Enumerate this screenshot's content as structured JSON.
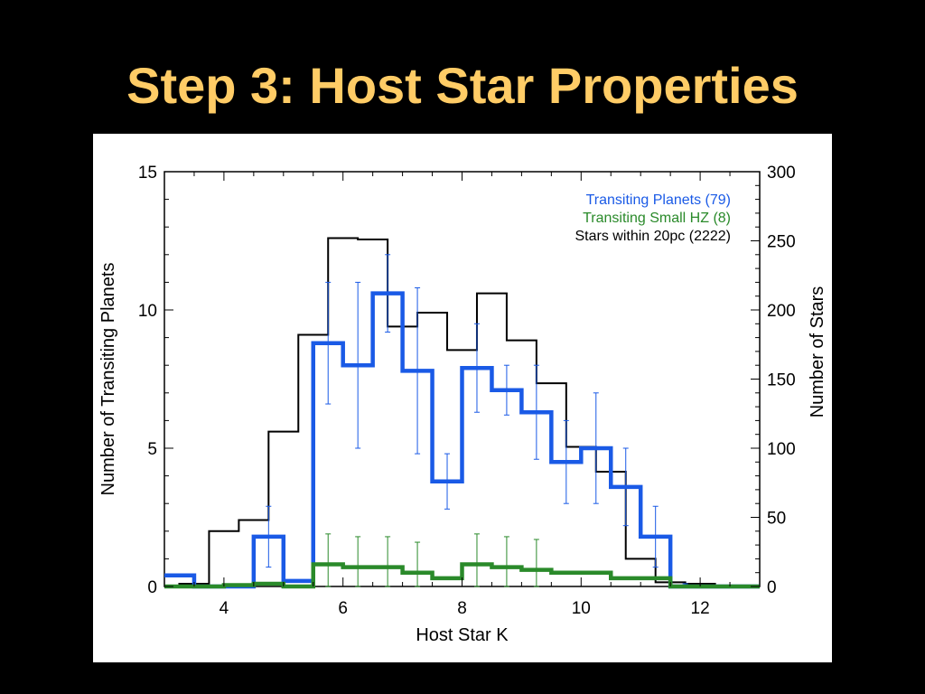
{
  "slide": {
    "title": "Step 3: Host Star Properties"
  },
  "colors": {
    "planets": "#1a5ae6",
    "small_hz": "#2a8a2a",
    "stars": "#000000",
    "title": "#ffcc66"
  },
  "chart_data": {
    "type": "histogram-step",
    "xlabel": "Host Star K",
    "ylabel_left": "Number of Transiting Planets",
    "ylabel_right": "Number of Stars",
    "xlim": [
      3,
      13
    ],
    "ylim_left": [
      0,
      15
    ],
    "ylim_right": [
      0,
      300
    ],
    "x_ticks": [
      4,
      6,
      8,
      10,
      12
    ],
    "y_ticks_left": [
      0,
      5,
      10,
      15
    ],
    "y_ticks_right": [
      0,
      50,
      100,
      150,
      200,
      250,
      300
    ],
    "bin_edges": [
      3.0,
      3.5,
      4.0,
      4.5,
      5.0,
      5.5,
      6.0,
      6.5,
      7.0,
      7.5,
      8.0,
      8.5,
      9.0,
      9.5,
      10.0,
      10.5,
      11.0,
      11.5,
      12.0,
      12.5,
      13.0
    ],
    "legend": [
      {
        "label": "Transiting Planets (79)",
        "color": "#1a5ae6"
      },
      {
        "label": "Transiting Small HZ (8)",
        "color": "#2a8a2a"
      },
      {
        "label": "Stars within 20pc (2222)",
        "color": "#000000"
      }
    ],
    "series": [
      {
        "name": "Stars within 20pc (2222)",
        "axis": "right",
        "edges": [
          3.0,
          3.25,
          3.75,
          4.25,
          4.75,
          5.25,
          5.75,
          6.25,
          6.75,
          7.25,
          7.75,
          8.25,
          8.75,
          9.25,
          9.75,
          10.25,
          10.75,
          11.25,
          11.75,
          12.25,
          12.75,
          13.0
        ],
        "values": [
          0,
          2,
          40,
          48,
          112,
          182,
          252,
          251,
          188,
          198,
          171,
          212,
          178,
          147,
          101,
          83,
          20,
          3,
          2,
          0,
          0
        ]
      },
      {
        "name": "Transiting Planets (79)",
        "axis": "left",
        "values": [
          0.4,
          0,
          0,
          1.8,
          0.2,
          8.8,
          8.0,
          10.6,
          7.8,
          3.8,
          7.9,
          7.1,
          6.3,
          4.5,
          5.0,
          3.6,
          1.8,
          0,
          0,
          0
        ],
        "errors": [
          0,
          0,
          0,
          1.1,
          0,
          2.2,
          3.0,
          1.4,
          3.0,
          1.0,
          1.6,
          0.9,
          1.7,
          1.5,
          2.0,
          1.4,
          1.1,
          0.1,
          0,
          0
        ]
      },
      {
        "name": "Transiting Small HZ (8)",
        "axis": "left",
        "values": [
          0,
          0,
          0.05,
          0.1,
          0,
          0.8,
          0.7,
          0.7,
          0.5,
          0.3,
          0.8,
          0.7,
          0.6,
          0.5,
          0.5,
          0.3,
          0.3,
          0,
          0,
          0
        ],
        "errors": [
          0,
          0,
          0,
          0,
          0,
          1.1,
          1.1,
          1.1,
          1.1,
          0,
          1.1,
          1.1,
          1.1,
          0,
          0,
          0,
          0,
          0,
          0,
          0
        ]
      }
    ]
  }
}
